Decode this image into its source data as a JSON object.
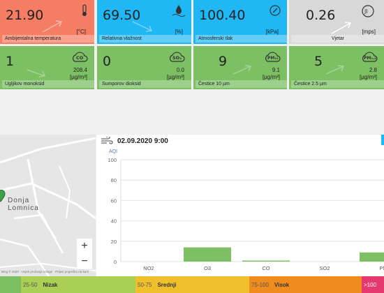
{
  "tiles_row1": [
    {
      "value": "21.90",
      "unit": "[°C]",
      "label": "Ambijentalna temperatura",
      "icon": "thermometer-icon"
    },
    {
      "value": "69.50",
      "unit": "[%]",
      "label": "Relativna vlažnost",
      "icon": "humidity-icon"
    },
    {
      "value": "100.40",
      "unit": "[kPa]",
      "label": "Atmosferski tlak",
      "icon": "gauge-icon"
    },
    {
      "value": "0.26",
      "unit": "[mps]",
      "label": "Vjetar",
      "icon": "wind-icon"
    }
  ],
  "tiles_row2": [
    {
      "value": "1",
      "sub": "208.4",
      "unit": "[µg/m³]",
      "label": "Ugljikov monoksid",
      "icon_text": "CO"
    },
    {
      "value": "0",
      "sub": "0.0",
      "unit": "[µg/m³]",
      "label": "Sumporov dioksid",
      "icon_text": "SO₂"
    },
    {
      "value": "9",
      "sub": "9.1",
      "unit": "[µg/m³]",
      "label": "Čestice 10 µm",
      "icon_text": "PM₁₀"
    },
    {
      "value": "5",
      "sub": "2.8",
      "unit": "[µg/m³]",
      "label": "Čestice 2.5 µm",
      "icon_text": "PM₂.₅"
    }
  ],
  "map": {
    "place_line1": "Donja",
    "place_line2": "Lomnica",
    "zoom_in": "+",
    "zoom_out": "−",
    "attribution": "Bing © 2020 · Uvjeti pružanja usluge · Prijavi pogrešku na karti"
  },
  "chart_header": {
    "timestamp": "02.09.2020 9:00",
    "icon": "wind-icon"
  },
  "chart_data": {
    "type": "bar",
    "ylabel": "AQI",
    "ylim": [
      0,
      100
    ],
    "yticks": [
      0,
      20,
      40,
      60,
      80,
      100
    ],
    "categories": [
      "NO2",
      "O3",
      "CO",
      "SO2",
      "PM"
    ],
    "values": [
      0,
      14,
      1,
      0,
      9
    ],
    "bar_color": "#7dc064",
    "grid": true
  },
  "aqi_legend": [
    {
      "range": "25-50",
      "name": "Nizak",
      "color": "#a9cf54"
    },
    {
      "range": "50-75",
      "name": "Srednji",
      "color": "#f0c02c"
    },
    {
      "range": "75-100",
      "name": "Visok",
      "color": "#f08c1e"
    },
    {
      "range": ">100",
      "name": "",
      "color": "#e5386e"
    }
  ]
}
